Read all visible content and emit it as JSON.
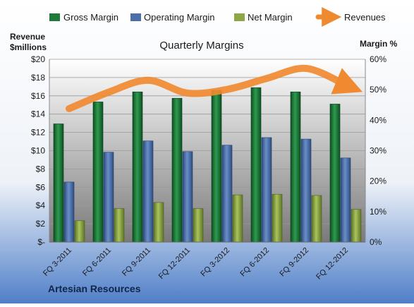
{
  "chart_data": {
    "type": "bar",
    "title": "Quarterly Margins",
    "subtitle": "",
    "left_axis": {
      "label_line1": "Revenue",
      "label_line2": "$millions",
      "ylim": [
        0,
        20
      ],
      "ticks": [
        0,
        2,
        4,
        6,
        8,
        10,
        12,
        14,
        16,
        18,
        20
      ],
      "tick_labels": [
        "$-",
        "$2",
        "$4",
        "$6",
        "$8",
        "$10",
        "$12",
        "$14",
        "$16",
        "$18",
        "$20"
      ]
    },
    "right_axis": {
      "label": "Margin %",
      "ylim": [
        0,
        60
      ],
      "ticks": [
        0,
        10,
        20,
        30,
        40,
        50,
        60
      ],
      "tick_labels": [
        "0%",
        "10%",
        "20%",
        "30%",
        "40%",
        "50%",
        "60%"
      ]
    },
    "categories": [
      "FQ 3-2011",
      "FQ 6-2011",
      "FQ 9-2011",
      "FQ 12-2011",
      "FQ 3-2012",
      "FQ 6-2012",
      "FQ 9-2012",
      "FQ 12-2012"
    ],
    "series": [
      {
        "name": "Gross Margin",
        "axis": "right",
        "kind": "bar",
        "color": "#1f7a3a",
        "values": [
          38.8,
          46.0,
          49.3,
          47.2,
          49.8,
          50.7,
          49.3,
          45.3
        ]
      },
      {
        "name": "Operating Margin",
        "axis": "right",
        "kind": "bar",
        "color": "#4a6fa8",
        "values": [
          19.7,
          29.5,
          33.2,
          29.7,
          31.8,
          34.3,
          33.8,
          27.6
        ]
      },
      {
        "name": "Net Margin",
        "axis": "right",
        "kind": "bar",
        "color": "#8ea645",
        "values": [
          7.0,
          11.0,
          13.0,
          11.0,
          15.5,
          15.7,
          15.3,
          10.7
        ]
      },
      {
        "name": "Revenues",
        "axis": "left",
        "kind": "line",
        "color": "#f08a30",
        "values": [
          14.6,
          16.4,
          17.7,
          16.3,
          16.7,
          17.9,
          19.0,
          17.2
        ]
      }
    ],
    "legend_position": "top",
    "grid": true
  },
  "footer": {
    "company": "Artesian Resources"
  },
  "colors": {
    "bg_top": "#ffffff",
    "bg_bottom": "#4f7fc8",
    "plot_top": "#ffffff",
    "plot_bottom": "#7d7d7d",
    "text": "#1a1a1a",
    "footer_text": "#10254a"
  }
}
